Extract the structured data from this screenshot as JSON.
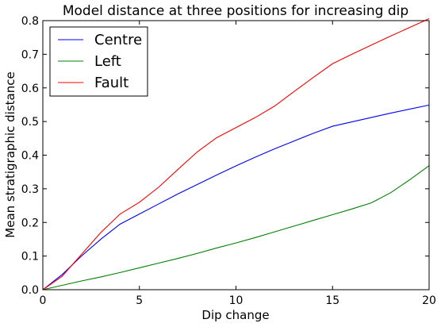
{
  "chart_data": {
    "type": "line",
    "title": "Model distance at three positions for increasing dip",
    "xlabel": "Dip change",
    "ylabel": "Mean stratigraphic distance",
    "xlim": [
      0,
      20
    ],
    "ylim": [
      0,
      0.8
    ],
    "xticks": [
      "0",
      "5",
      "10",
      "15",
      "20"
    ],
    "yticks": [
      "0.0",
      "0.1",
      "0.2",
      "0.3",
      "0.4",
      "0.5",
      "0.6",
      "0.7",
      "0.8"
    ],
    "grid": false,
    "legend_position": "top-left",
    "series": [
      {
        "name": "Centre",
        "color": "#0000ff",
        "x": [
          0,
          1,
          2,
          3,
          4,
          5,
          6,
          7,
          8,
          9,
          10,
          11,
          12,
          13,
          14,
          15,
          16,
          17,
          18,
          19,
          20
        ],
        "y": [
          0,
          0.045,
          0.1,
          0.15,
          0.195,
          0.225,
          0.255,
          0.285,
          0.313,
          0.341,
          0.368,
          0.394,
          0.419,
          0.442,
          0.465,
          0.486,
          0.499,
          0.512,
          0.525,
          0.537,
          0.549
        ]
      },
      {
        "name": "Left",
        "color": "#008000",
        "x": [
          0,
          1,
          2,
          3,
          4,
          5,
          6,
          7,
          8,
          9,
          10,
          11,
          12,
          13,
          14,
          15,
          16,
          17,
          18,
          19,
          20
        ],
        "y": [
          0,
          0.013,
          0.026,
          0.038,
          0.051,
          0.065,
          0.079,
          0.093,
          0.108,
          0.124,
          0.139,
          0.155,
          0.172,
          0.189,
          0.206,
          0.223,
          0.24,
          0.258,
          0.288,
          0.327,
          0.369
        ]
      },
      {
        "name": "Fault",
        "color": "#ff0000",
        "x": [
          0,
          1,
          2,
          3,
          4,
          5,
          6,
          7,
          8,
          9,
          10,
          11,
          12,
          13,
          14,
          15,
          16,
          17,
          18,
          19,
          20
        ],
        "y": [
          0,
          0.04,
          0.105,
          0.17,
          0.225,
          0.26,
          0.305,
          0.358,
          0.41,
          0.452,
          0.482,
          0.512,
          0.546,
          0.589,
          0.631,
          0.672,
          0.7,
          0.727,
          0.754,
          0.78,
          0.806
        ]
      }
    ]
  }
}
